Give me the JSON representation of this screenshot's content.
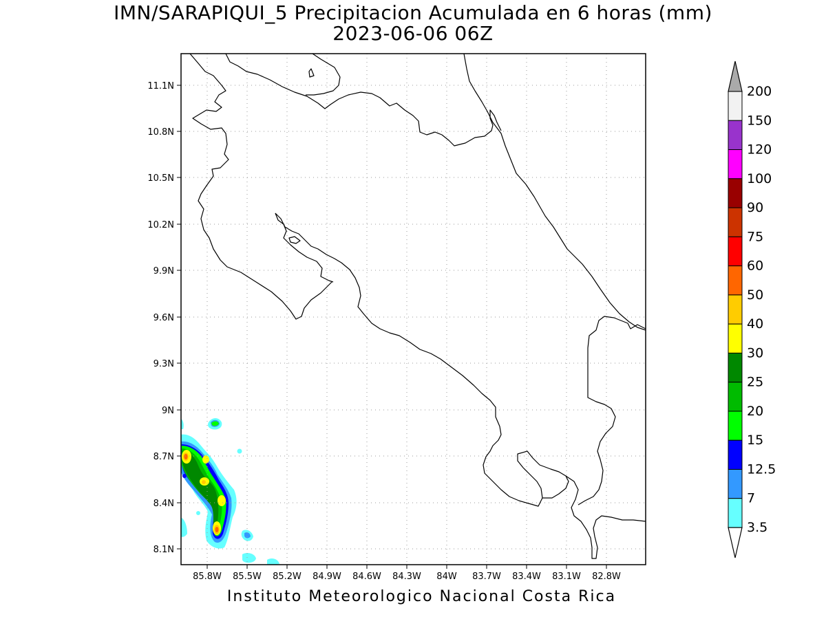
{
  "title": {
    "line1": "IMN/SARAPIQUI_5 Precipitacion Acumulada en 6 horas (mm)",
    "line2": "2023-06-06 06Z"
  },
  "footer": "Instituto Meteorologico Nacional Costa Rica",
  "map": {
    "lat_ticks": [
      "11.1N",
      "10.8N",
      "10.5N",
      "10.2N",
      "9.9N",
      "9.6N",
      "9.3N",
      "9N",
      "8.7N",
      "8.4N",
      "8.1N"
    ],
    "lon_ticks": [
      "85.8W",
      "85.5W",
      "85.2W",
      "84.9W",
      "84.6W",
      "84.3W",
      "84W",
      "83.7W",
      "83.4W",
      "83.1W",
      "82.8W"
    ],
    "gridlines": "dotted"
  },
  "colorbar": {
    "labels": [
      "200",
      "150",
      "120",
      "100",
      "90",
      "75",
      "60",
      "50",
      "40",
      "30",
      "25",
      "20",
      "15",
      "12.5",
      "7",
      "3.5"
    ],
    "colors": [
      "#f2f2f2",
      "#9933cc",
      "#ff00ff",
      "#990000",
      "#cc3300",
      "#ff0000",
      "#ff6600",
      "#ffcc00",
      "#ffff00",
      "#008800",
      "#00bb00",
      "#00ff00",
      "#0000ff",
      "#3399ff",
      "#66ffff"
    ],
    "extend_top_color": "#aaaaaa",
    "extend_bottom_color": "#ffffff"
  }
}
